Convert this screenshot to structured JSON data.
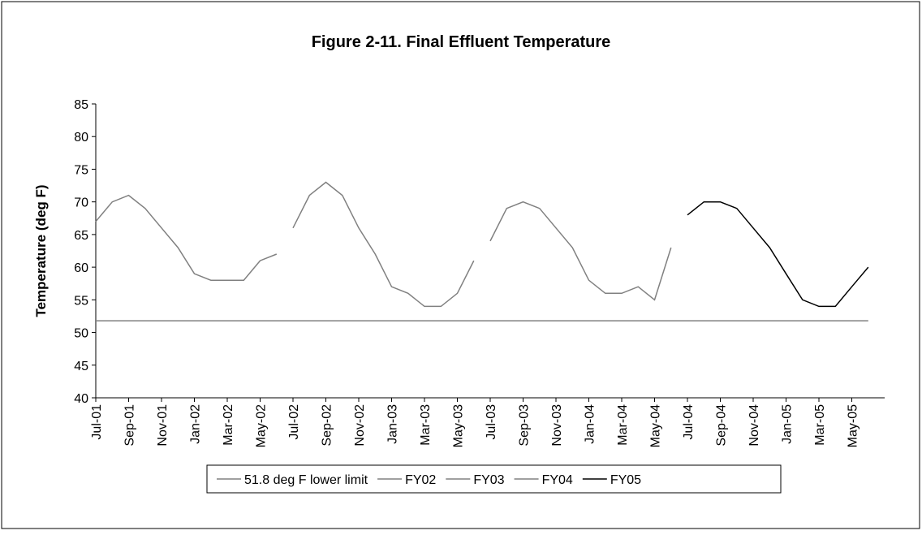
{
  "chart_data": {
    "type": "line",
    "title": "Figure 2-11.  Final Effluent Temperature",
    "y_label": "Temperature (deg F)",
    "categories": [
      "Jul-01",
      null,
      "Sep-01",
      null,
      "Nov-01",
      null,
      "Jan-02",
      null,
      "Mar-02",
      null,
      "May-02",
      null,
      "Jul-02",
      null,
      "Sep-02",
      null,
      "Nov-02",
      null,
      "Jan-03",
      null,
      "Mar-03",
      null,
      "May-03",
      null,
      "Jul-03",
      null,
      "Sep-03",
      null,
      "Nov-03",
      null,
      "Jan-04",
      null,
      "Mar-04",
      null,
      "May-04",
      null,
      "Jul-04",
      null,
      "Sep-04",
      null,
      "Nov-04",
      null,
      "Jan-05",
      null,
      "Mar-05",
      null,
      "May-05",
      null
    ],
    "ylim": [
      40,
      85
    ],
    "yticks": [
      40,
      45,
      50,
      55,
      60,
      65,
      70,
      75,
      80,
      85
    ],
    "series": [
      {
        "name": "51.8 deg F lower limit",
        "color": "#808080",
        "values": [
          51.8,
          51.8,
          51.8,
          51.8,
          51.8,
          51.8,
          51.8,
          51.8,
          51.8,
          51.8,
          51.8,
          51.8,
          51.8,
          51.8,
          51.8,
          51.8,
          51.8,
          51.8,
          51.8,
          51.8,
          51.8,
          51.8,
          51.8,
          51.8,
          51.8,
          51.8,
          51.8,
          51.8,
          51.8,
          51.8,
          51.8,
          51.8,
          51.8,
          51.8,
          51.8,
          51.8,
          51.8,
          51.8,
          51.8,
          51.8,
          51.8,
          51.8,
          51.8,
          51.8,
          51.8,
          51.8,
          51.8,
          51.8
        ]
      },
      {
        "name": "FY02",
        "color": "#808080",
        "values": [
          67,
          70,
          71,
          69,
          66,
          63,
          59,
          58,
          58,
          58,
          61,
          62,
          null,
          null,
          null,
          null,
          null,
          null,
          null,
          null,
          null,
          null,
          null,
          null,
          null,
          null,
          null,
          null,
          null,
          null,
          null,
          null,
          null,
          null,
          null,
          null,
          null,
          null,
          null,
          null,
          null,
          null,
          null,
          null,
          null,
          null,
          null,
          null
        ]
      },
      {
        "name": "FY03",
        "color": "#808080",
        "values": [
          null,
          null,
          null,
          null,
          null,
          null,
          null,
          null,
          null,
          null,
          null,
          null,
          66,
          71,
          73,
          71,
          66,
          62,
          57,
          56,
          54,
          54,
          56,
          61,
          null,
          null,
          null,
          null,
          null,
          null,
          null,
          null,
          null,
          null,
          null,
          null,
          null,
          null,
          null,
          null,
          null,
          null,
          null,
          null,
          null,
          null,
          null,
          null
        ]
      },
      {
        "name": "FY04",
        "color": "#808080",
        "values": [
          null,
          null,
          null,
          null,
          null,
          null,
          null,
          null,
          null,
          null,
          null,
          null,
          null,
          null,
          null,
          null,
          null,
          null,
          null,
          null,
          null,
          null,
          null,
          null,
          64,
          69,
          70,
          69,
          66,
          63,
          58,
          56,
          56,
          57,
          55,
          63,
          null,
          null,
          null,
          null,
          null,
          null,
          null,
          null,
          null,
          null,
          null,
          null
        ]
      },
      {
        "name": "FY05",
        "color": "#000000",
        "values": [
          null,
          null,
          null,
          null,
          null,
          null,
          null,
          null,
          null,
          null,
          null,
          null,
          null,
          null,
          null,
          null,
          null,
          null,
          null,
          null,
          null,
          null,
          null,
          null,
          null,
          null,
          null,
          null,
          null,
          null,
          null,
          null,
          null,
          null,
          null,
          null,
          68,
          70,
          70,
          69,
          66,
          63,
          59,
          55,
          54,
          54,
          57,
          60
        ]
      }
    ]
  }
}
